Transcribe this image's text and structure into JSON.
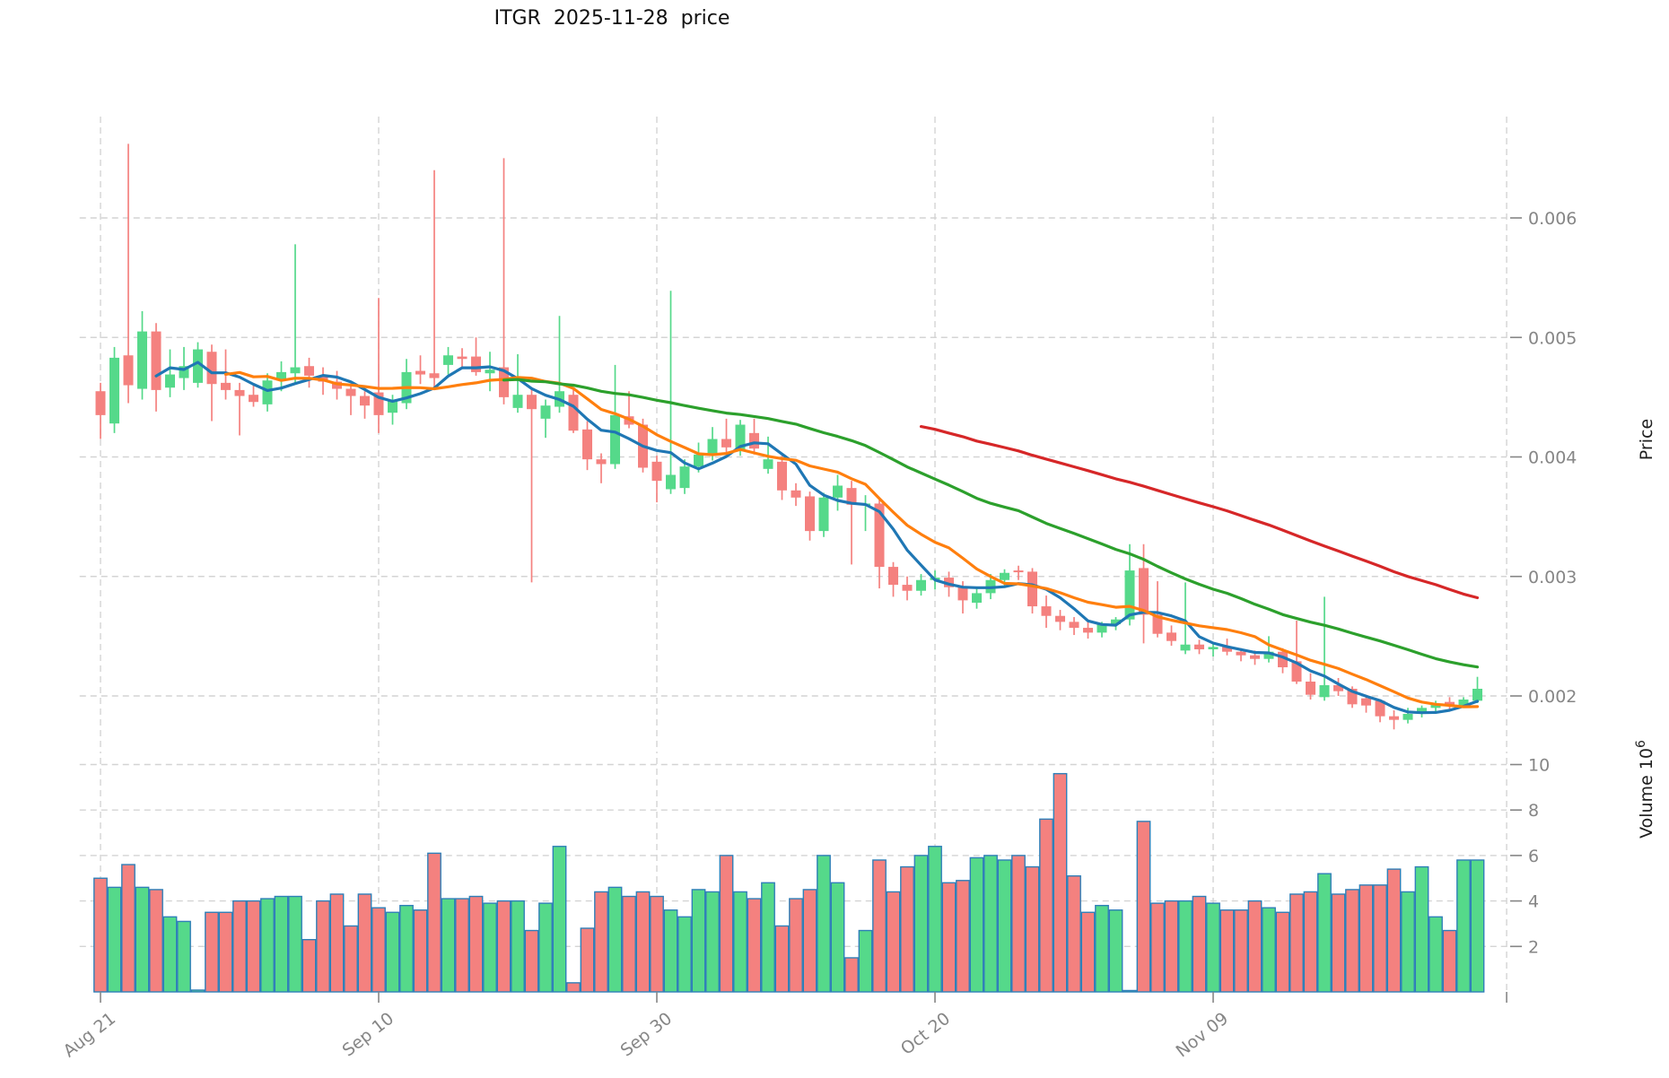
{
  "title": "ITGR  2025-11-28  price",
  "colors": {
    "background": "#ffffff",
    "up": "#55d98a",
    "down": "#f4817f",
    "volume_edge": "#2f7fb8",
    "grid": "#d4d4d4",
    "tick_text": "#868686",
    "axis_title_text": "#1f1f1f",
    "title_text": "#111111"
  },
  "chart_data": {
    "type": "candlestick+volume",
    "symbol": "ITGR",
    "as_of_date": "2025-11-28",
    "title": "ITGR  2025-11-28  price",
    "grid": "dashed",
    "legend": "none",
    "x_axis": {
      "tick_labels": [
        "Aug 21",
        "Sep 10",
        "Sep 30",
        "Oct 20",
        "Nov 09"
      ],
      "tick_indices": [
        0,
        20,
        40,
        60,
        80
      ],
      "unlabeled_boundary_tick_index": 101.1,
      "xlim": [
        -1.5,
        101.1
      ]
    },
    "price_axis": {
      "label": "Price",
      "side": "right",
      "ticks": [
        0.002,
        0.003,
        0.004,
        0.005,
        0.006
      ],
      "tick_labels": [
        "0.002",
        "0.003",
        "0.004",
        "0.005",
        "0.006"
      ]
    },
    "volume_axis": {
      "label": "Volume",
      "unit_base": "10",
      "unit_exponent": "6",
      "side": "right",
      "ticks": [
        2,
        4,
        6,
        8,
        10
      ],
      "tick_labels": [
        "2",
        "4",
        "6",
        "8",
        "10"
      ],
      "ylim": [
        0,
        10.7
      ]
    },
    "mav_windows": [
      5,
      10,
      30,
      60
    ],
    "mav_colors": [
      "#1f77b4",
      "#ff7f0e",
      "#2ca02c",
      "#d62728"
    ],
    "ohlc": [
      [
        0.00455,
        0.00462,
        0.00415,
        0.00435
      ],
      [
        0.00428,
        0.00492,
        0.0042,
        0.00483
      ],
      [
        0.00485,
        0.00662,
        0.00445,
        0.0046
      ],
      [
        0.00457,
        0.00522,
        0.00448,
        0.00505
      ],
      [
        0.00505,
        0.00512,
        0.00438,
        0.00456
      ],
      [
        0.00458,
        0.0049,
        0.0045,
        0.00469
      ],
      [
        0.00466,
        0.00492,
        0.00456,
        0.00476
      ],
      [
        0.00462,
        0.00496,
        0.00458,
        0.0049
      ],
      [
        0.00488,
        0.00494,
        0.0043,
        0.00461
      ],
      [
        0.00462,
        0.0049,
        0.00448,
        0.00456
      ],
      [
        0.00456,
        0.00462,
        0.00418,
        0.00451
      ],
      [
        0.00452,
        0.0046,
        0.00442,
        0.00446
      ],
      [
        0.00444,
        0.0047,
        0.00438,
        0.00464
      ],
      [
        0.00464,
        0.0048,
        0.00455,
        0.00471
      ],
      [
        0.0047,
        0.00578,
        0.00462,
        0.00475
      ],
      [
        0.00476,
        0.00483,
        0.00458,
        0.00468
      ],
      [
        0.00467,
        0.00475,
        0.00452,
        0.00463
      ],
      [
        0.00463,
        0.00472,
        0.00448,
        0.00457
      ],
      [
        0.00457,
        0.00461,
        0.00435,
        0.00451
      ],
      [
        0.00451,
        0.00455,
        0.00432,
        0.00443
      ],
      [
        0.00454,
        0.00533,
        0.0042,
        0.00435
      ],
      [
        0.00437,
        0.00452,
        0.00427,
        0.00447
      ],
      [
        0.00445,
        0.00482,
        0.0044,
        0.00471
      ],
      [
        0.00472,
        0.00485,
        0.00461,
        0.00469
      ],
      [
        0.0047,
        0.0064,
        0.00457,
        0.00466
      ],
      [
        0.00477,
        0.00492,
        0.00469,
        0.00485
      ],
      [
        0.00484,
        0.00491,
        0.00475,
        0.00482
      ],
      [
        0.00484,
        0.005,
        0.00468,
        0.00471
      ],
      [
        0.0047,
        0.00488,
        0.00455,
        0.00473
      ],
      [
        0.00475,
        0.0065,
        0.00444,
        0.0045
      ],
      [
        0.00441,
        0.00486,
        0.00437,
        0.00452
      ],
      [
        0.00452,
        0.00458,
        0.00295,
        0.0044
      ],
      [
        0.00432,
        0.00448,
        0.00416,
        0.00443
      ],
      [
        0.00442,
        0.00518,
        0.00437,
        0.00455
      ],
      [
        0.00452,
        0.00457,
        0.0042,
        0.00422
      ],
      [
        0.00423,
        0.0043,
        0.00389,
        0.00398
      ],
      [
        0.00398,
        0.00403,
        0.00378,
        0.00394
      ],
      [
        0.00394,
        0.00477,
        0.0039,
        0.00435
      ],
      [
        0.00434,
        0.00455,
        0.00424,
        0.00427
      ],
      [
        0.00427,
        0.00432,
        0.00387,
        0.00391
      ],
      [
        0.00396,
        0.00401,
        0.00362,
        0.0038
      ],
      [
        0.00373,
        0.00539,
        0.00369,
        0.00385
      ],
      [
        0.00374,
        0.00398,
        0.00369,
        0.00392
      ],
      [
        0.00392,
        0.00412,
        0.00387,
        0.00402
      ],
      [
        0.00402,
        0.00425,
        0.00397,
        0.00415
      ],
      [
        0.00415,
        0.00432,
        0.00404,
        0.00408
      ],
      [
        0.00406,
        0.00431,
        0.00401,
        0.00427
      ],
      [
        0.0042,
        0.00432,
        0.00402,
        0.00407
      ],
      [
        0.0039,
        0.00417,
        0.00386,
        0.00398
      ],
      [
        0.00396,
        0.00401,
        0.00364,
        0.00372
      ],
      [
        0.00372,
        0.00378,
        0.00359,
        0.00366
      ],
      [
        0.00367,
        0.00371,
        0.0033,
        0.00338
      ],
      [
        0.00338,
        0.0037,
        0.00333,
        0.00366
      ],
      [
        0.00366,
        0.00385,
        0.00355,
        0.00376
      ],
      [
        0.00374,
        0.0038,
        0.0031,
        0.0036
      ],
      [
        0.0036,
        0.00368,
        0.00338,
        0.00361
      ],
      [
        0.00361,
        0.00364,
        0.0029,
        0.00308
      ],
      [
        0.00308,
        0.00312,
        0.00283,
        0.00293
      ],
      [
        0.00293,
        0.003,
        0.0028,
        0.00288
      ],
      [
        0.00288,
        0.00302,
        0.00284,
        0.00297
      ],
      [
        0.00297,
        0.00305,
        0.00289,
        0.00299
      ],
      [
        0.00299,
        0.00304,
        0.00283,
        0.00291
      ],
      [
        0.00291,
        0.00296,
        0.00269,
        0.0028
      ],
      [
        0.00278,
        0.0029,
        0.00273,
        0.00286
      ],
      [
        0.00286,
        0.00302,
        0.00281,
        0.00297
      ],
      [
        0.00297,
        0.00306,
        0.00291,
        0.00303
      ],
      [
        0.00305,
        0.00309,
        0.00297,
        0.00304
      ],
      [
        0.00304,
        0.00307,
        0.00269,
        0.00275
      ],
      [
        0.00275,
        0.00284,
        0.00257,
        0.00267
      ],
      [
        0.00267,
        0.00272,
        0.00255,
        0.00262
      ],
      [
        0.00262,
        0.00266,
        0.00251,
        0.00257
      ],
      [
        0.00257,
        0.00262,
        0.00248,
        0.00253
      ],
      [
        0.00253,
        0.00262,
        0.00249,
        0.0026
      ],
      [
        0.0026,
        0.00266,
        0.00255,
        0.00264
      ],
      [
        0.00264,
        0.00327,
        0.00259,
        0.00305
      ],
      [
        0.00307,
        0.00327,
        0.00244,
        0.00268
      ],
      [
        0.00268,
        0.00296,
        0.00249,
        0.00252
      ],
      [
        0.00253,
        0.00259,
        0.00242,
        0.00246
      ],
      [
        0.00238,
        0.00295,
        0.00235,
        0.00243
      ],
      [
        0.00243,
        0.00247,
        0.00235,
        0.00239
      ],
      [
        0.00239,
        0.00244,
        0.00233,
        0.00241
      ],
      [
        0.00241,
        0.00248,
        0.00234,
        0.00237
      ],
      [
        0.00237,
        0.0024,
        0.00229,
        0.00234
      ],
      [
        0.00234,
        0.00238,
        0.00226,
        0.00231
      ],
      [
        0.00231,
        0.0025,
        0.00228,
        0.00237
      ],
      [
        0.00237,
        0.0024,
        0.00219,
        0.00224
      ],
      [
        0.00229,
        0.00263,
        0.0021,
        0.00212
      ],
      [
        0.00212,
        0.00219,
        0.00197,
        0.00201
      ],
      [
        0.00199,
        0.00283,
        0.00196,
        0.00209
      ],
      [
        0.00209,
        0.00215,
        0.002,
        0.00204
      ],
      [
        0.00206,
        0.00208,
        0.0019,
        0.00193
      ],
      [
        0.00198,
        0.00201,
        0.00186,
        0.00192
      ],
      [
        0.00196,
        0.00197,
        0.00178,
        0.00183
      ],
      [
        0.00183,
        0.00188,
        0.00172,
        0.0018
      ],
      [
        0.0018,
        0.0019,
        0.00177,
        0.00185
      ],
      [
        0.00185,
        0.00192,
        0.00182,
        0.0019
      ],
      [
        0.0019,
        0.00196,
        0.00187,
        0.00193
      ],
      [
        0.00195,
        0.00199,
        0.00189,
        0.00192
      ],
      [
        0.00192,
        0.00199,
        0.0019,
        0.00197
      ],
      [
        0.00196,
        0.00216,
        0.00194,
        0.00206
      ]
    ],
    "volumes_millions": [
      5.0,
      4.6,
      5.6,
      4.6,
      4.5,
      3.3,
      3.1,
      0.08,
      3.5,
      3.5,
      4.0,
      4.0,
      4.1,
      4.2,
      4.2,
      2.3,
      4.0,
      4.3,
      2.9,
      4.3,
      3.7,
      3.5,
      3.8,
      3.6,
      6.1,
      4.1,
      4.1,
      4.2,
      3.9,
      4.0,
      4.0,
      2.7,
      3.9,
      6.4,
      0.4,
      2.8,
      4.4,
      4.6,
      4.2,
      4.4,
      4.2,
      3.6,
      3.3,
      4.5,
      4.4,
      6.0,
      4.4,
      4.1,
      4.8,
      2.9,
      4.1,
      4.5,
      6.0,
      4.8,
      1.5,
      2.7,
      5.8,
      4.4,
      5.5,
      6.0,
      6.4,
      4.8,
      4.9,
      5.9,
      6.0,
      5.8,
      6.0,
      5.5,
      7.6,
      9.6,
      5.1,
      3.5,
      3.8,
      3.6,
      0.06,
      7.5,
      3.9,
      4.0,
      4.0,
      4.2,
      3.9,
      3.6,
      3.6,
      4.0,
      3.7,
      3.5,
      4.3,
      4.4,
      5.2,
      4.3,
      4.5,
      4.7,
      4.7,
      5.4,
      4.4,
      5.5,
      3.3,
      2.7,
      5.8,
      5.8
    ]
  }
}
